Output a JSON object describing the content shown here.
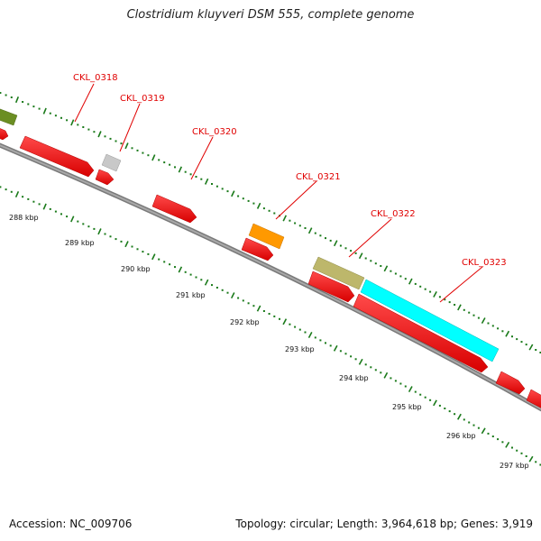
{
  "title": "Clostridium kluyveri DSM 555, complete genome",
  "footer": {
    "accession": "Accession: NC_009706",
    "summary": "Topology: circular; Length: 3,964,618 bp; Genes: 3,919"
  },
  "colors": {
    "backbone": "#808080",
    "cds": "#ff0000",
    "tick": "#1a7a1a",
    "label": "#e00000",
    "olive": "#6b8e23",
    "gray_gene": "#c8c8c8",
    "orange_gene": "#ff9900",
    "khaki_gene": "#bdb76b",
    "cyan_gene": "#00ffff"
  },
  "scale_ticks": [
    {
      "label": "288 kbp"
    },
    {
      "label": "289 kbp"
    },
    {
      "label": "290 kbp"
    },
    {
      "label": "291 kbp"
    },
    {
      "label": "292 kbp"
    },
    {
      "label": "293 kbp"
    },
    {
      "label": "294 kbp"
    },
    {
      "label": "295 kbp"
    },
    {
      "label": "296 kbp"
    },
    {
      "label": "297 kbp"
    }
  ],
  "gene_labels": [
    {
      "name": "CKL_0318"
    },
    {
      "name": "CKL_0319"
    },
    {
      "name": "CKL_0320"
    },
    {
      "name": "CKL_0321"
    },
    {
      "name": "CKL_0322"
    },
    {
      "name": "CKL_0323"
    }
  ]
}
